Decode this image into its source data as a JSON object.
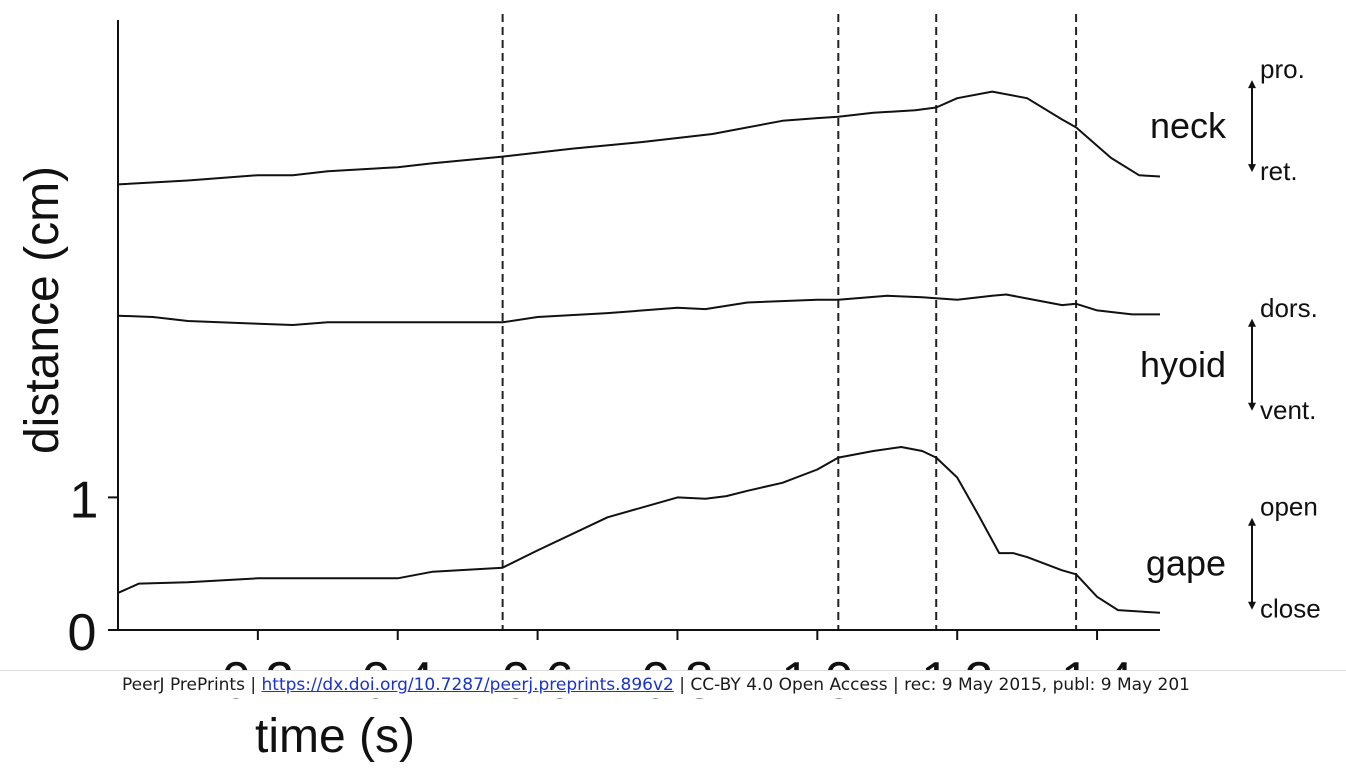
{
  "chart_data": {
    "type": "line",
    "xlabel": "time (s)",
    "ylabel": "distance (cm)",
    "xlim": [
      0.0,
      1.49
    ],
    "x_ticks": [
      "0.2",
      "0.4",
      "0.6",
      "0.8",
      "1.0",
      "1.2",
      "1.4"
    ],
    "x_tick_values": [
      0.2,
      0.4,
      0.6,
      0.8,
      1.0,
      1.2,
      1.4
    ],
    "ylim": [
      0,
      4.6
    ],
    "y_ticks": [
      "0",
      "1"
    ],
    "y_tick_values": [
      0,
      1
    ],
    "vlines": [
      0.55,
      1.03,
      1.17,
      1.37
    ],
    "series": [
      {
        "name": "neck",
        "top_label": "pro.",
        "bottom_label": "ret.",
        "x": [
          0.0,
          0.1,
          0.2,
          0.25,
          0.3,
          0.4,
          0.45,
          0.55,
          0.65,
          0.75,
          0.85,
          0.95,
          1.0,
          1.03,
          1.08,
          1.14,
          1.17,
          1.2,
          1.25,
          1.3,
          1.35,
          1.37,
          1.42,
          1.46,
          1.49
        ],
        "y": [
          3.36,
          3.39,
          3.43,
          3.43,
          3.46,
          3.49,
          3.52,
          3.57,
          3.63,
          3.68,
          3.74,
          3.84,
          3.86,
          3.87,
          3.9,
          3.92,
          3.94,
          4.01,
          4.06,
          4.01,
          3.85,
          3.79,
          3.56,
          3.43,
          3.42
        ]
      },
      {
        "name": "hyoid",
        "top_label": "dors.",
        "bottom_label": "vent.",
        "x": [
          0.0,
          0.05,
          0.1,
          0.2,
          0.25,
          0.3,
          0.4,
          0.5,
          0.55,
          0.6,
          0.7,
          0.8,
          0.84,
          0.9,
          1.0,
          1.03,
          1.1,
          1.15,
          1.2,
          1.25,
          1.27,
          1.3,
          1.35,
          1.37,
          1.4,
          1.45,
          1.49
        ],
        "y": [
          2.37,
          2.36,
          2.33,
          2.31,
          2.3,
          2.32,
          2.32,
          2.32,
          2.32,
          2.36,
          2.39,
          2.43,
          2.42,
          2.47,
          2.49,
          2.49,
          2.52,
          2.51,
          2.49,
          2.52,
          2.53,
          2.5,
          2.45,
          2.46,
          2.41,
          2.38,
          2.38
        ]
      },
      {
        "name": "gape",
        "top_label": "open",
        "bottom_label": "close",
        "x": [
          0.0,
          0.03,
          0.1,
          0.2,
          0.3,
          0.4,
          0.45,
          0.55,
          0.6,
          0.7,
          0.8,
          0.84,
          0.87,
          0.9,
          0.95,
          1.0,
          1.03,
          1.08,
          1.12,
          1.15,
          1.17,
          1.2,
          1.23,
          1.26,
          1.28,
          1.3,
          1.35,
          1.37,
          1.4,
          1.43,
          1.49
        ],
        "y": [
          0.28,
          0.35,
          0.36,
          0.39,
          0.39,
          0.39,
          0.44,
          0.47,
          0.6,
          0.85,
          1.0,
          0.99,
          1.01,
          1.05,
          1.11,
          1.21,
          1.3,
          1.35,
          1.38,
          1.35,
          1.3,
          1.15,
          0.87,
          0.58,
          0.58,
          0.55,
          0.45,
          0.42,
          0.25,
          0.15,
          0.13
        ]
      }
    ]
  },
  "footer": {
    "prefix": "PeerJ PrePrints | ",
    "link": "https://dx.doi.org/10.7287/peerj.preprints.896v2",
    "suffix": " | CC-BY 4.0 Open Access | rec: 9 May 2015, publ: 9 May 201"
  }
}
